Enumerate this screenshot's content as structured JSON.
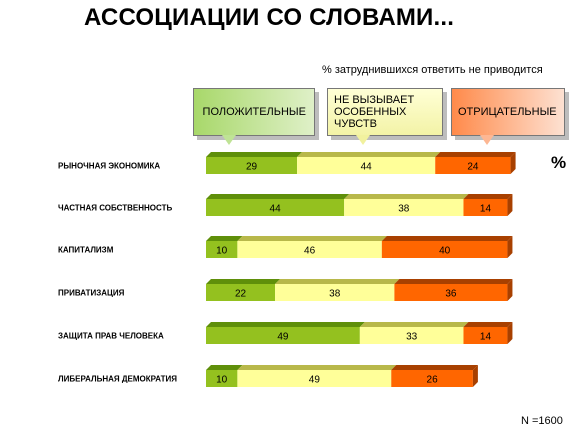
{
  "title": "АССОЦИАЦИИ СО СЛОВАМИ...",
  "note": "% затруднившихся ответить не приводится",
  "legend": {
    "positive": "ПОЛОЖИТЕЛЬНЫЕ",
    "neutral_lines": [
      "НЕ ВЫЗЫВАЕТ",
      "ОСОБЕННЫХ",
      "ЧУВСТВ"
    ],
    "negative": "ОТРИЦАТЕЛЬНЫЕ"
  },
  "unit_label": "%",
  "footer": "N =1600",
  "colors": {
    "positive": "#94c11f",
    "neutral": "#ffff99",
    "negative": "#ff6600"
  },
  "chart_data": {
    "type": "bar",
    "orientation": "horizontal",
    "stacked": true,
    "categories": [
      "РЫНОЧНАЯ ЭКОНОМИКА",
      "ЧАСТНАЯ СОБСТВЕННОСТЬ",
      "КАПИТАЛИЗМ",
      "ПРИВАТИЗАЦИЯ",
      "ЗАЩИТА ПРАВ ЧЕЛОВЕКА",
      "ЛИБЕРАЛЬНАЯ ДЕМОКРАТИЯ"
    ],
    "series": [
      {
        "name": "ПОЛОЖИТЕЛЬНЫЕ",
        "values": [
          29,
          44,
          10,
          22,
          49,
          10
        ]
      },
      {
        "name": "НЕ ВЫЗЫВАЕТ ОСОБЕННЫХ ЧУВСТВ",
        "values": [
          44,
          38,
          46,
          38,
          33,
          49
        ]
      },
      {
        "name": "ОТРИЦАТЕЛЬНЫЕ",
        "values": [
          24,
          14,
          40,
          36,
          14,
          26
        ]
      }
    ],
    "xlim": [
      0,
      100
    ],
    "grid": false,
    "legend_position": "top"
  }
}
